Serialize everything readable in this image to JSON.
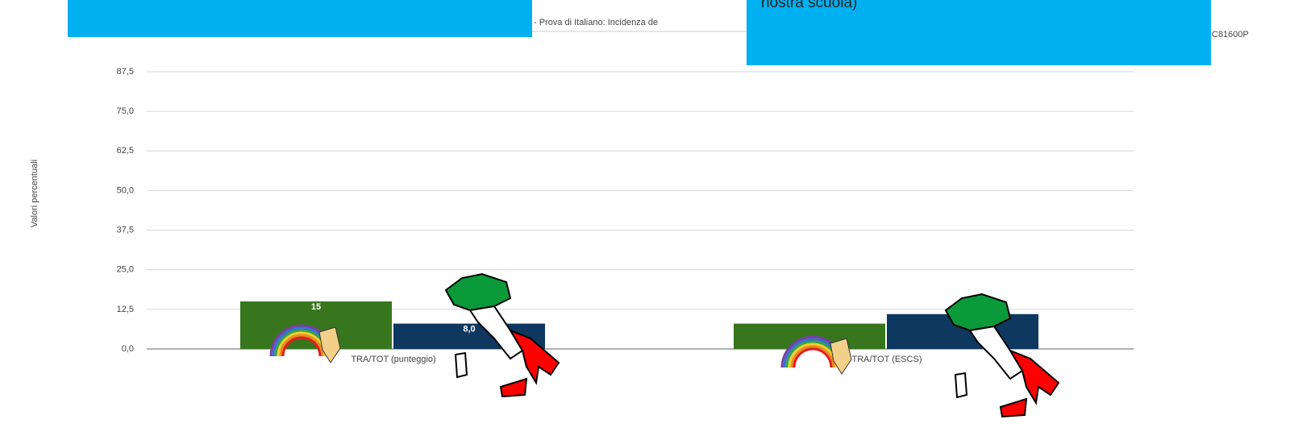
{
  "chart_data": {
    "type": "bar",
    "title": "- Prova di Italiano: Incidenza de",
    "y_label": "Valori percentuali",
    "overlay_text": "nostra scuola)",
    "code_label": "C81600P",
    "categories": [
      "TRA/TOT (punteggio)",
      "TRA/TOT (ESCS)"
    ],
    "series": [
      {
        "color": "#38761d",
        "values": [
          15,
          8
        ],
        "value_labels": [
          "15",
          null
        ]
      },
      {
        "color": "#0e3860",
        "values": [
          8,
          11
        ],
        "value_labels": [
          "8,0",
          null
        ]
      }
    ],
    "ylim": [
      0,
      87.5
    ],
    "yticks": [
      {
        "value": 0,
        "label": "0,0"
      },
      {
        "value": 12.5,
        "label": "12,5"
      },
      {
        "value": 25,
        "label": "25,0"
      },
      {
        "value": 37.5,
        "label": "37,5"
      },
      {
        "value": 50,
        "label": "50,0"
      },
      {
        "value": 62.5,
        "label": "62,5"
      },
      {
        "value": 75,
        "label": "75,0"
      },
      {
        "value": 87.5,
        "label": "87,5"
      }
    ],
    "grid": true
  }
}
